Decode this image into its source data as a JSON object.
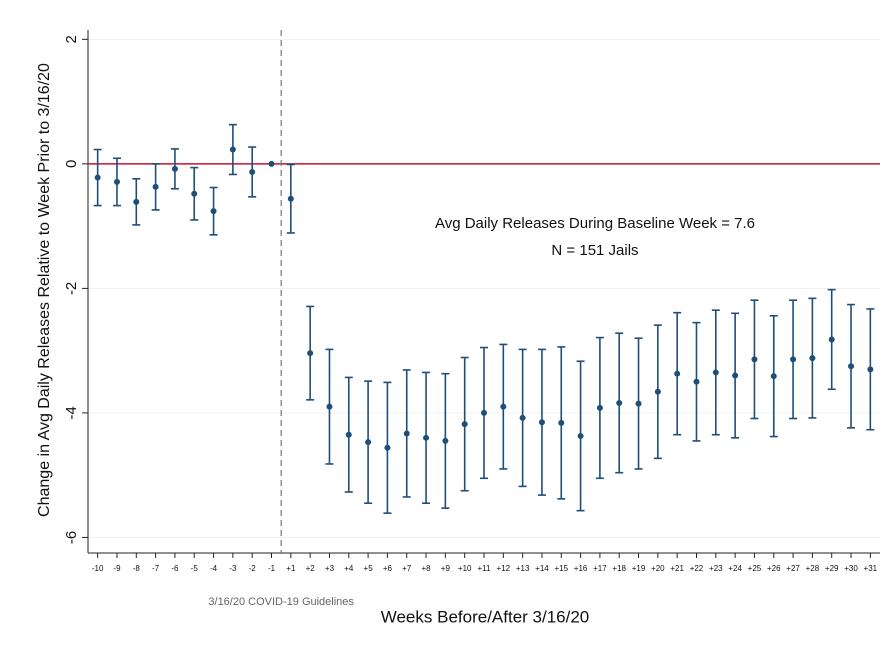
{
  "chart_data": {
    "type": "errorbar",
    "y_label": "Change in Avg Daily Releases Relative to Week Prior to 3/16/20",
    "x_label": "Weeks Before/After 3/16/20",
    "annotations": [
      "Avg Daily Releases During Baseline Week = 7.6",
      "N = 151 Jails"
    ],
    "event_label": "3/16/20 COVID-19 Guidelines",
    "categories": [
      "-10",
      "-9",
      "-8",
      "-7",
      "-6",
      "-5",
      "-4",
      "-3",
      "-2",
      "-1",
      "+1",
      "+2",
      "+3",
      "+4",
      "+5",
      "+6",
      "+7",
      "+8",
      "+9",
      "+10",
      "+11",
      "+12",
      "+13",
      "+14",
      "+15",
      "+16",
      "+17",
      "+18",
      "+19",
      "+20",
      "+21",
      "+22",
      "+23",
      "+24",
      "+25",
      "+26",
      "+27",
      "+28",
      "+29",
      "+30",
      "+31"
    ],
    "values": [
      -0.22,
      -0.29,
      -0.61,
      -0.37,
      -0.08,
      -0.48,
      -0.76,
      0.23,
      -0.13,
      0,
      -0.56,
      -3.04,
      -3.9,
      -4.35,
      -4.47,
      -4.56,
      -4.33,
      -4.4,
      -4.45,
      -4.18,
      -4.0,
      -3.9,
      -4.08,
      -4.15,
      -4.16,
      -4.37,
      -3.92,
      -3.84,
      -3.85,
      -3.66,
      -3.37,
      -3.5,
      -3.35,
      -3.4,
      -3.14,
      -3.41,
      -3.14,
      -3.12,
      -2.82,
      -3.25,
      -3.3
    ],
    "errors": [
      0.45,
      0.38,
      0.37,
      0.37,
      0.32,
      0.42,
      0.38,
      0.4,
      0.4,
      0,
      0.55,
      0.75,
      0.92,
      0.92,
      0.98,
      1.05,
      1.02,
      1.05,
      1.08,
      1.07,
      1.05,
      1.0,
      1.1,
      1.17,
      1.22,
      1.2,
      1.13,
      1.12,
      1.05,
      1.07,
      0.98,
      0.95,
      1.0,
      1.0,
      0.95,
      0.97,
      0.95,
      0.96,
      0.8,
      0.99,
      0.97
    ],
    "color": "#1f4e79",
    "reference_line": {
      "value": 0,
      "color": "#c8102e"
    },
    "ylim": [
      -6.25,
      2.15
    ],
    "yticks": [
      -6,
      -4,
      -2,
      0,
      2
    ],
    "grid": true
  }
}
